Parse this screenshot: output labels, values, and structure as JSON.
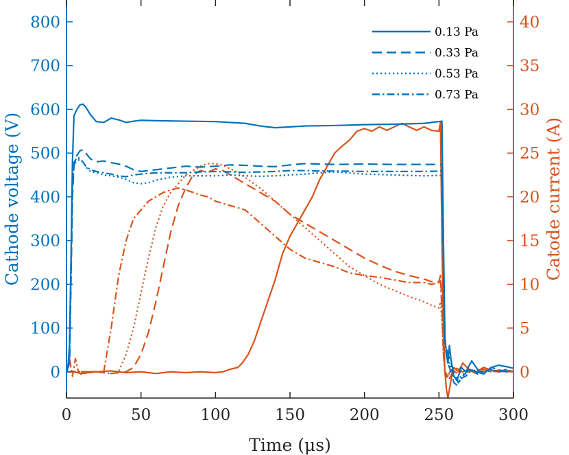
{
  "chart_data": {
    "type": "line",
    "title": "",
    "xlabel": "Time (μs)",
    "ylabel_left": "Cathode voltage (V)",
    "ylabel_right": "Catode current (A)",
    "xlim": [
      0,
      300
    ],
    "ylim_left": [
      -60,
      850
    ],
    "ylim_right": [
      -3,
      42.5
    ],
    "xticks": [
      "0",
      "50",
      "100",
      "150",
      "200",
      "250",
      "300"
    ],
    "yticks_left": [
      "0",
      "100",
      "200",
      "300",
      "400",
      "500",
      "600",
      "700",
      "800"
    ],
    "yticks_right": [
      "0",
      "5",
      "10",
      "15",
      "20",
      "25",
      "30",
      "35",
      "40"
    ],
    "grid": false,
    "legend_position": "top-right",
    "colors": {
      "voltage": "#0072BD",
      "current": "#D95319"
    },
    "legend": [
      {
        "label": "0.13 Pa",
        "style": "solid"
      },
      {
        "label": "0.33 Pa",
        "style": "dashed"
      },
      {
        "label": "0.53 Pa",
        "style": "dotted"
      },
      {
        "label": "0.73 Pa",
        "style": "dashdot"
      }
    ],
    "voltage_series": [
      {
        "name": "0.13 Pa",
        "style": "solid",
        "axis": "left",
        "x": [
          0,
          1,
          2,
          3,
          4,
          5,
          7,
          9,
          11,
          13,
          16,
          20,
          25,
          30,
          35,
          40,
          45,
          50,
          60,
          80,
          100,
          120,
          130,
          140,
          150,
          160,
          180,
          200,
          220,
          240,
          252,
          253,
          254,
          255,
          256,
          257,
          258,
          260,
          262,
          265,
          268,
          272,
          276,
          280,
          285,
          290,
          295,
          300
        ],
        "y": [
          0,
          10,
          60,
          250,
          480,
          585,
          600,
          610,
          612,
          605,
          588,
          572,
          570,
          580,
          576,
          570,
          573,
          575,
          574,
          573,
          572,
          568,
          562,
          558,
          560,
          562,
          563,
          565,
          566,
          568,
          573,
          300,
          80,
          40,
          20,
          60,
          30,
          -10,
          -20,
          10,
          0,
          25,
          5,
          -5,
          10,
          15,
          12,
          8
        ]
      },
      {
        "name": "0.33 Pa",
        "style": "dashed",
        "axis": "left",
        "x": [
          0,
          2,
          3,
          4,
          5,
          7,
          9,
          11,
          13,
          16,
          20,
          25,
          30,
          35,
          40,
          45,
          50,
          60,
          70,
          80,
          90,
          100,
          110,
          120,
          130,
          140,
          150,
          160,
          170,
          180,
          200,
          220,
          240,
          252,
          253,
          254,
          256,
          258,
          260,
          263,
          266,
          270,
          275,
          280,
          285,
          290,
          295,
          300
        ],
        "y": [
          0,
          20,
          200,
          400,
          470,
          495,
          505,
          508,
          500,
          487,
          480,
          482,
          478,
          475,
          470,
          462,
          458,
          462,
          466,
          470,
          468,
          470,
          473,
          472,
          470,
          469,
          473,
          476,
          475,
          474,
          475,
          474,
          474,
          474,
          250,
          70,
          40,
          20,
          0,
          -25,
          -10,
          5,
          0,
          -5,
          10,
          5,
          0,
          2
        ]
      },
      {
        "name": "0.53 Pa",
        "style": "dotted",
        "axis": "left",
        "x": [
          0,
          2,
          3,
          4,
          5,
          7,
          9,
          11,
          13,
          16,
          20,
          25,
          30,
          35,
          40,
          45,
          50,
          55,
          60,
          70,
          80,
          90,
          100,
          110,
          120,
          130,
          140,
          150,
          160,
          170,
          180,
          200,
          220,
          240,
          252,
          253,
          254,
          256,
          258,
          260,
          262,
          265,
          268,
          272,
          276,
          280,
          285,
          290,
          295,
          300
        ],
        "y": [
          0,
          20,
          200,
          420,
          475,
          483,
          485,
          480,
          468,
          458,
          455,
          450,
          448,
          445,
          440,
          432,
          430,
          432,
          438,
          445,
          448,
          448,
          448,
          450,
          448,
          447,
          448,
          450,
          452,
          455,
          457,
          452,
          450,
          448,
          449,
          250,
          60,
          30,
          10,
          -10,
          -20,
          -10,
          0,
          5,
          0,
          0,
          5,
          0,
          2,
          0
        ]
      },
      {
        "name": "0.73 Pa",
        "style": "dashdot",
        "axis": "left",
        "x": [
          0,
          2,
          3,
          4,
          5,
          7,
          9,
          11,
          13,
          16,
          20,
          25,
          30,
          35,
          40,
          45,
          50,
          60,
          70,
          80,
          90,
          100,
          110,
          120,
          130,
          140,
          150,
          160,
          170,
          180,
          200,
          220,
          240,
          252,
          253,
          254,
          256,
          258,
          260,
          262,
          265,
          268,
          272,
          276,
          280,
          285,
          290,
          295,
          300
        ],
        "y": [
          0,
          20,
          220,
          420,
          478,
          490,
          488,
          480,
          470,
          462,
          458,
          455,
          452,
          448,
          446,
          450,
          452,
          455,
          455,
          455,
          457,
          458,
          457,
          456,
          457,
          458,
          460,
          460,
          459,
          459,
          458,
          458,
          458,
          459,
          250,
          60,
          20,
          0,
          -25,
          -30,
          -15,
          -10,
          5,
          -5,
          0,
          5,
          0,
          5,
          0
        ]
      }
    ],
    "current_series": [
      {
        "name": "0.13 Pa",
        "style": "solid",
        "axis": "right",
        "x": [
          0,
          5,
          10,
          20,
          30,
          40,
          50,
          60,
          70,
          80,
          90,
          100,
          105,
          110,
          115,
          118,
          122,
          126,
          130,
          135,
          140,
          145,
          150,
          155,
          160,
          165,
          170,
          175,
          180,
          185,
          190,
          195,
          200,
          205,
          210,
          215,
          220,
          225,
          230,
          235,
          240,
          245,
          250,
          251,
          252,
          253,
          254,
          255,
          256,
          258,
          260,
          263,
          266,
          270,
          275,
          280,
          285,
          290,
          295,
          300
        ],
        "y": [
          0,
          0,
          -0.2,
          0,
          0.1,
          -0.1,
          0,
          -0.2,
          0,
          -0.1,
          0,
          -0.1,
          0,
          0.3,
          0.5,
          1,
          2,
          3.5,
          5.5,
          8,
          10.5,
          13.5,
          15.5,
          17,
          18.5,
          20,
          22,
          23.5,
          25,
          25.8,
          26.5,
          27.5,
          27.8,
          27.5,
          28,
          27.6,
          28,
          28.4,
          28,
          27.6,
          28,
          27.6,
          27.5,
          28.5,
          15,
          5,
          0,
          -2,
          -3,
          -1,
          0.5,
          0,
          1,
          0.3,
          0,
          0.5,
          0.2,
          0,
          0.1,
          0
        ]
      },
      {
        "name": "0.33 Pa",
        "style": "dashed",
        "axis": "right",
        "x": [
          0,
          10,
          20,
          30,
          40,
          45,
          50,
          55,
          60,
          65,
          70,
          75,
          80,
          85,
          90,
          95,
          100,
          105,
          110,
          115,
          120,
          130,
          140,
          150,
          160,
          170,
          180,
          190,
          200,
          210,
          220,
          230,
          240,
          245,
          250,
          251,
          252,
          253,
          254,
          256,
          258,
          260,
          263,
          266,
          270,
          275,
          280,
          285,
          290,
          295,
          300
        ],
        "y": [
          0,
          0,
          0,
          -0.2,
          0,
          0.5,
          2,
          4.5,
          8,
          12,
          16,
          19,
          21,
          22.5,
          23,
          22.8,
          23.2,
          23,
          22.5,
          22,
          21.5,
          20.5,
          19.5,
          18,
          17,
          16,
          15,
          14,
          13,
          12.2,
          11.5,
          11,
          10.6,
          10.3,
          10.3,
          11,
          8,
          3,
          0,
          -1,
          -0.5,
          0.5,
          0.3,
          0,
          0.2,
          -0.2,
          0.3,
          0,
          0.2,
          0,
          0.1
        ]
      },
      {
        "name": "0.53 Pa",
        "style": "dotted",
        "axis": "right",
        "x": [
          0,
          10,
          20,
          30,
          35,
          40,
          45,
          50,
          55,
          60,
          65,
          70,
          75,
          80,
          85,
          90,
          95,
          100,
          105,
          110,
          115,
          120,
          130,
          140,
          150,
          160,
          170,
          180,
          190,
          200,
          210,
          220,
          230,
          240,
          245,
          250,
          251,
          252,
          253,
          254,
          256,
          258,
          260,
          263,
          266,
          270,
          275,
          280,
          285,
          290,
          295,
          300
        ],
        "y": [
          0,
          0,
          0,
          -0.2,
          0,
          2,
          5,
          9,
          13,
          16.5,
          19,
          20.5,
          21.5,
          22.5,
          23,
          23.5,
          23.8,
          23.8,
          23.6,
          23.2,
          22.8,
          22.2,
          21,
          19.5,
          18,
          16.5,
          15,
          13.5,
          12,
          11,
          10,
          9.3,
          8.6,
          8,
          7.6,
          7.3,
          8,
          6,
          2,
          0,
          -0.5,
          0.3,
          0,
          0.2,
          0,
          0.1,
          0,
          0.2,
          0,
          0.1,
          0,
          0
        ]
      },
      {
        "name": "0.73 Pa",
        "style": "dashdot",
        "axis": "right",
        "x": [
          0,
          2,
          4,
          6,
          8,
          10,
          15,
          20,
          25,
          30,
          35,
          40,
          45,
          50,
          55,
          60,
          65,
          70,
          75,
          80,
          85,
          90,
          95,
          100,
          110,
          120,
          130,
          140,
          150,
          160,
          170,
          180,
          190,
          200,
          210,
          220,
          230,
          240,
          245,
          250,
          251,
          252,
          253,
          254,
          256,
          258,
          260,
          263,
          266,
          270,
          275,
          280,
          285,
          290,
          295,
          300
        ],
        "y": [
          0,
          1.5,
          -0.5,
          1.5,
          0,
          -0.3,
          0,
          0,
          0,
          5,
          11,
          15,
          17.5,
          18.5,
          19.5,
          20,
          20.5,
          20.8,
          21,
          20.8,
          20.5,
          20.2,
          20,
          19.5,
          19,
          18.5,
          17,
          15.5,
          14,
          13,
          12.5,
          12,
          11.3,
          11,
          10.8,
          10.5,
          10.2,
          10.2,
          10,
          10.2,
          10.5,
          7,
          2,
          0,
          -0.5,
          0.2,
          0,
          -0.2,
          0.1,
          0,
          0.2,
          0,
          0.1,
          0,
          0.2,
          0
        ]
      }
    ]
  }
}
